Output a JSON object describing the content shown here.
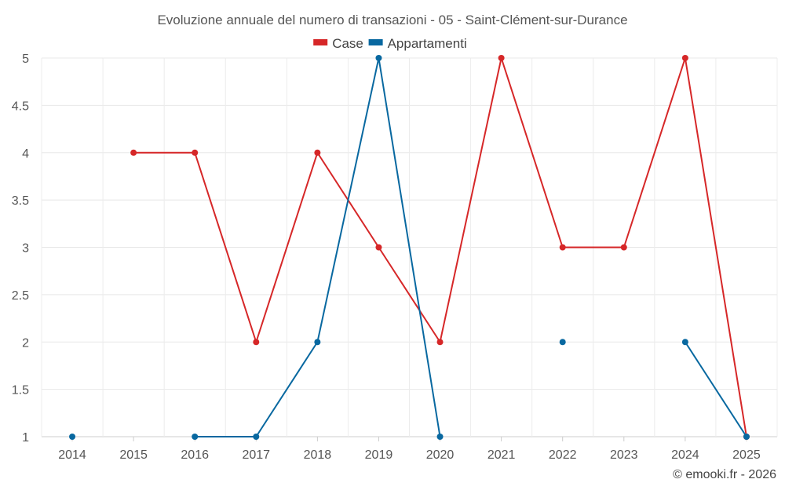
{
  "chart_data": {
    "type": "line",
    "title": "Evoluzione annuale del numero di transazioni - 05 - Saint-Clément-sur-Durance",
    "categories": [
      "2014",
      "2015",
      "2016",
      "2017",
      "2018",
      "2019",
      "2020",
      "2021",
      "2022",
      "2023",
      "2024",
      "2025"
    ],
    "series": [
      {
        "name": "Case",
        "color": "#d62728",
        "values": [
          null,
          4,
          4,
          2,
          4,
          3,
          2,
          5,
          3,
          3,
          5,
          1
        ]
      },
      {
        "name": "Appartamenti",
        "color": "#0868a0",
        "values": [
          1,
          null,
          1,
          1,
          2,
          5,
          1,
          null,
          2,
          null,
          2,
          1
        ]
      }
    ],
    "yticks": [
      "1",
      "1.5",
      "2",
      "2.5",
      "3",
      "3.5",
      "4",
      "4.5",
      "5"
    ],
    "ylim": [
      1,
      5
    ],
    "grid": true,
    "legend_position": "top-center",
    "xlabel": "",
    "ylabel": ""
  },
  "credit": "© emooki.fr - 2026"
}
